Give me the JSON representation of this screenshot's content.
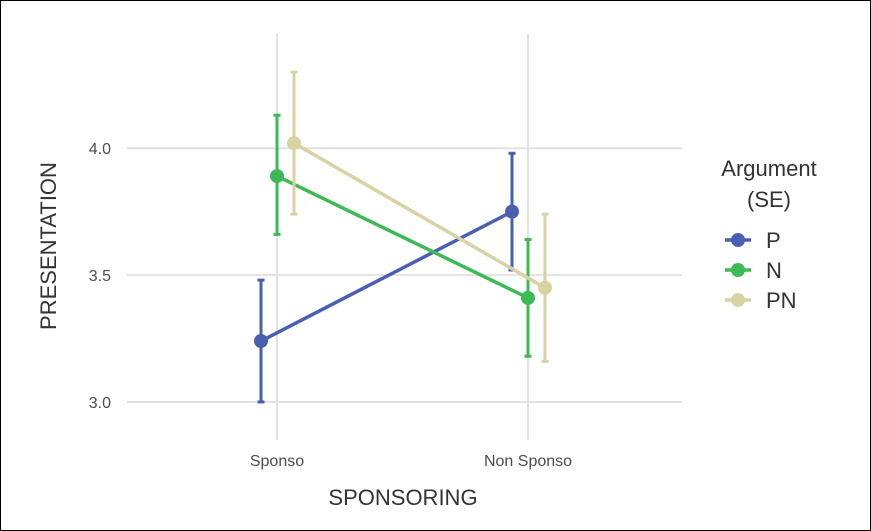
{
  "chart_data": {
    "type": "line",
    "xlabel": "SPONSORING",
    "ylabel": "PRESENTATION",
    "categories": [
      "Sponso",
      "Non Sponso"
    ],
    "ylim": [
      2.85,
      4.45
    ],
    "yticks": [
      3.0,
      3.5,
      4.0
    ],
    "ytick_labels": [
      "3.0",
      "3.5",
      "4.0"
    ],
    "grid": true,
    "legend": {
      "title_lines": [
        "Argument",
        "(SE)"
      ],
      "position": "right"
    },
    "series": [
      {
        "name": "P",
        "color": "#4a5fb0",
        "values": [
          3.24,
          3.75
        ],
        "lower": [
          3.0,
          3.52
        ],
        "upper": [
          3.48,
          3.98
        ]
      },
      {
        "name": "N",
        "color": "#3cba54",
        "values": [
          3.89,
          3.41
        ],
        "lower": [
          3.66,
          3.18
        ],
        "upper": [
          4.13,
          3.64
        ]
      },
      {
        "name": "PN",
        "color": "#d8d3a2",
        "values": [
          4.02,
          3.45
        ],
        "lower": [
          3.74,
          3.16
        ],
        "upper": [
          4.3,
          3.74
        ]
      }
    ]
  }
}
